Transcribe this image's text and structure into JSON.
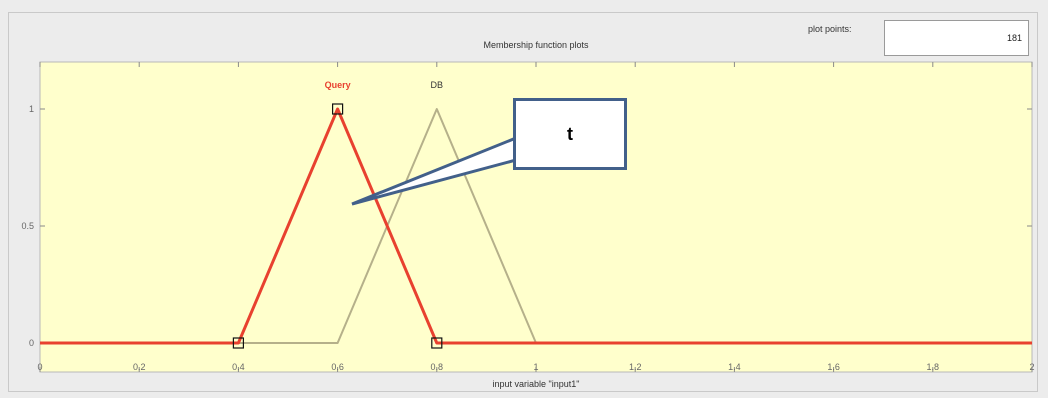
{
  "panel": {
    "plot_points_label": "plot points:",
    "plot_points_value": "181"
  },
  "callout": {
    "text": "t"
  },
  "chart_data": {
    "type": "line",
    "title": "Membership function plots",
    "xlabel": "input variable \"input1\"",
    "ylabel": "",
    "xlim": [
      0,
      2
    ],
    "ylim": [
      0,
      1
    ],
    "x_ticks": [
      0,
      0.2,
      0.4,
      0.6,
      0.8,
      1,
      1.2,
      1.4,
      1.6,
      1.8,
      2
    ],
    "x_tick_labels": [
      "0",
      "0.2",
      "0.4",
      "0.6",
      "0.8",
      "1",
      "1.2",
      "1.4",
      "1.6",
      "1.8",
      "2"
    ],
    "y_ticks": [
      0,
      0.5,
      1
    ],
    "y_tick_labels": [
      "0",
      "0.5",
      "1"
    ],
    "grid": false,
    "series": [
      {
        "name": "Query",
        "color": "#e8412f",
        "shape": "triangular",
        "params": [
          0.4,
          0.6,
          0.8
        ],
        "selected": true
      },
      {
        "name": "DB",
        "color": "#b5b08a",
        "shape": "triangular",
        "params": [
          0.6,
          0.8,
          1.0
        ],
        "selected": false
      }
    ],
    "background": "#ffffcc"
  }
}
